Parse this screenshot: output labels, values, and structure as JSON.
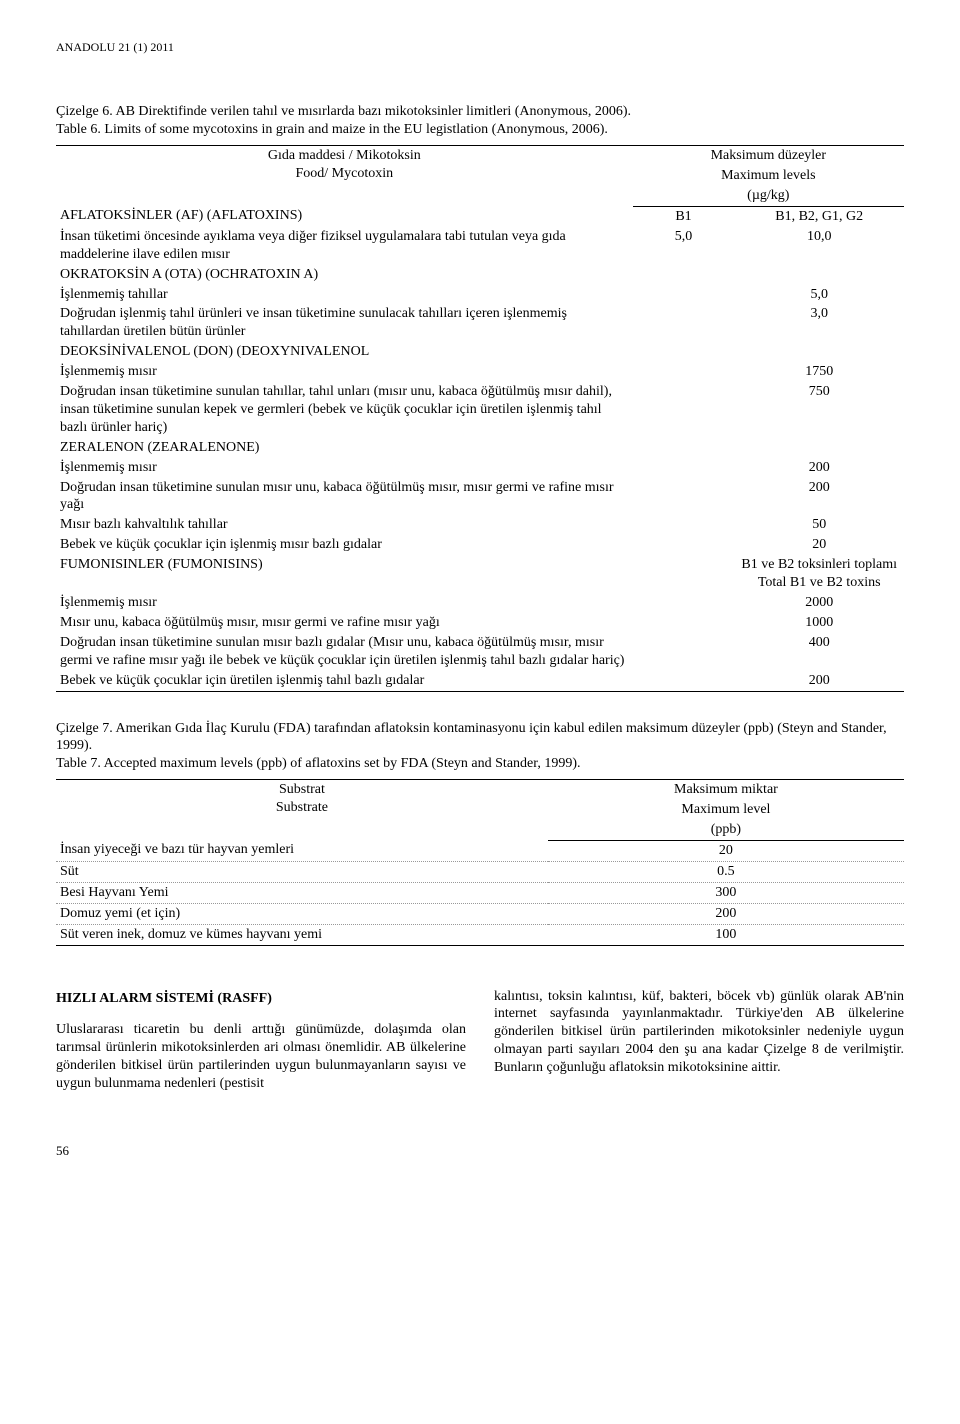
{
  "journal": "ANADOLU 21 (1) 2011",
  "table6": {
    "caption_tr": "Çizelge 6. AB Direktifinde verilen tahıl ve mısırlarda bazı mikotoksinler limitleri (Anonymous, 2006).",
    "caption_en": "Table 6. Limits of some mycotoxins in grain and maize in the EU legistlation (Anonymous, 2006).",
    "header_left_tr": "Gıda maddesi / Mikotoksin",
    "header_left_en": "Food/ Mycotoxin",
    "header_right_tr": "Maksimum düzeyler",
    "header_right_en": "Maximum levels",
    "header_right_unit": "(µg/kg)",
    "rows": [
      {
        "label": "AFLATOKSİNLER (AF) (AFLATOXINS)",
        "a": "B1",
        "b": "B1, B2, G1, G2"
      },
      {
        "label": "İnsan tüketimi öncesinde ayıklama veya diğer fiziksel uygulamalara tabi tutulan veya gıda maddelerine ilave edilen mısır",
        "a": "5,0",
        "b": "10,0"
      },
      {
        "label": "OKRATOKSİN A (OTA) (OCHRATOXIN A)",
        "a": "",
        "b": ""
      },
      {
        "label": "İşlenmemiş tahıllar",
        "a": "",
        "b": "5,0"
      },
      {
        "label": "Doğrudan işlenmiş tahıl ürünleri ve insan tüketimine sunulacak tahılları içeren işlenmemiş tahıllardan üretilen bütün ürünler",
        "a": "",
        "b": "3,0"
      },
      {
        "label": "DEOKSİNİVALENOL (DON) (DEOXYNIVALENOL",
        "a": "",
        "b": ""
      },
      {
        "label": "İşlenmemiş mısır",
        "a": "",
        "b": "1750"
      },
      {
        "label": "Doğrudan insan tüketimine sunulan tahıllar, tahıl unları (mısır unu, kabaca öğütülmüş mısır dahil), insan tüketimine sunulan kepek ve germleri (bebek ve küçük çocuklar için üretilen işlenmiş tahıl bazlı ürünler hariç)",
        "a": "",
        "b": "750"
      },
      {
        "label": "ZERALENON (ZEARALENONE)",
        "a": "",
        "b": ""
      },
      {
        "label": "İşlenmemiş mısır",
        "a": "",
        "b": "200"
      },
      {
        "label": "Doğrudan insan tüketimine sunulan mısır unu, kabaca öğütülmüş mısır, mısır germi ve rafine mısır yağı",
        "a": "",
        "b": "200"
      },
      {
        "label": "Mısır bazlı kahvaltılık tahıllar",
        "a": "",
        "b": "50"
      },
      {
        "label": "Bebek ve küçük çocuklar için işlenmiş mısır bazlı gıdalar",
        "a": "",
        "b": "20"
      },
      {
        "label": "FUMONISINLER (FUMONISINS)",
        "a": "",
        "b": "B1 ve B2 toksinleri toplamı<br>Total B1 ve B2 toxins"
      },
      {
        "label": "İşlenmemiş mısır",
        "a": "",
        "b": "2000"
      },
      {
        "label": "Mısır unu, kabaca öğütülmüş mısır, mısır germi ve rafine mısır yağı",
        "a": "",
        "b": "1000"
      },
      {
        "label": "Doğrudan insan tüketimine sunulan mısır bazlı gıdalar (Mısır unu, kabaca öğütülmüş mısır, mısır germi ve rafine mısır yağı ile bebek ve küçük çocuklar için üretilen işlenmiş tahıl bazlı gıdalar hariç)",
        "a": "",
        "b": "400"
      },
      {
        "label": "Bebek ve küçük çocuklar için üretilen işlenmiş tahıl bazlı gıdalar",
        "a": "",
        "b": "200"
      }
    ]
  },
  "table7": {
    "caption_tr": "Çizelge 7. Amerikan Gıda İlaç Kurulu (FDA) tarafından aflatoksin kontaminasyonu için kabul edilen maksimum düzeyler (ppb) (Steyn and Stander, 1999).",
    "caption_en": "Table 7. Accepted maximum levels (ppb) of aflatoxins set by FDA (Steyn and Stander, 1999).",
    "header_left_tr": "Substrat",
    "header_left_en": "Substrate",
    "header_right_tr": "Maksimum miktar",
    "header_right_en": "Maximum level",
    "header_right_unit": "(ppb)",
    "rows": [
      {
        "label": "İnsan yiyeceği ve bazı tür hayvan yemleri",
        "val": "20"
      },
      {
        "label": "Süt",
        "val": "0.5"
      },
      {
        "label": "Besi Hayvanı Yemi",
        "val": "300"
      },
      {
        "label": "Domuz yemi (et için)",
        "val": "200"
      },
      {
        "label": "Süt veren inek, domuz ve kümes hayvanı yemi",
        "val": "100"
      }
    ]
  },
  "section_title": "HIZLI ALARM SİSTEMİ (RASFF)",
  "body_left": "Uluslararası ticaretin bu denli arttığı günümüzde, dolaşımda olan tarımsal ürünlerin mikotoksinlerden ari olması önemlidir. AB ülkelerine gönderilen bitkisel ürün partilerinden uygun bulunmayanların sayısı ve uygun bulunmama nedenleri (pestisit",
  "body_right_1": "kalıntısı, toksin kalıntısı, küf, bakteri, böcek vb) günlük olarak AB'nin internet sayfasında yayınlanmaktadır. Türkiye'den AB ülkelerine gönderilen bitkisel ürün partilerinden mikotoksinler nedeniyle uygun olmayan parti sayıları 2004 den şu ana kadar Çizelge 8 de verilmiştir. Bunların çoğunluğu aflatoksin mikotoksinine aittir.",
  "page_number": "56"
}
